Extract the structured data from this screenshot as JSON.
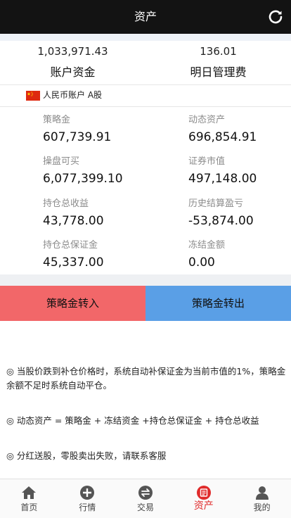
{
  "header": {
    "title": "资产",
    "refresh_icon": "refresh-icon"
  },
  "summary": {
    "account_funds_value": "1,033,971.43",
    "account_funds_label": "账户资金",
    "next_day_fee_value": "136.01",
    "next_day_fee_label": "明日管理费"
  },
  "account": {
    "label": "人民币账户 A股",
    "flag_icon": "china-flag-icon"
  },
  "stats": {
    "strategy_fund": {
      "label": "策略金",
      "value": "607,739.91"
    },
    "dynamic_assets": {
      "label": "动态资产",
      "value": "696,854.91"
    },
    "tradable": {
      "label": "操盘可买",
      "value": "6,077,399.10"
    },
    "market_value": {
      "label": "证券市值",
      "value": "497,148.00"
    },
    "position_profit": {
      "label": "持仓总收益",
      "value": "43,778.00"
    },
    "historical_pl": {
      "label": "历史结算盈亏",
      "value": "-53,874.00"
    },
    "position_margin": {
      "label": "持仓总保证金",
      "value": "45,337.00"
    },
    "frozen_amount": {
      "label": "冻结金额",
      "value": "0.00"
    }
  },
  "actions": {
    "transfer_in": "策略金转入",
    "transfer_out": "策略金转出"
  },
  "notes": [
    "◎ 当股价跌到补仓价格时，系统自动补保证金为当前市值的1%，策略金余额不足时系统自动平仓。",
    "◎ 动态资产 = 策略金 + 冻结资金 +持仓总保证金 + 持仓总收益",
    "◎ 分红送股，零股卖出失败，请联系客服"
  ],
  "tabs": [
    {
      "label": "首页",
      "icon": "home-icon"
    },
    {
      "label": "行情",
      "icon": "plus-circle-icon"
    },
    {
      "label": "交易",
      "icon": "exchange-icon"
    },
    {
      "label": "资产",
      "icon": "assets-icon"
    },
    {
      "label": "我的",
      "icon": "user-icon"
    }
  ],
  "colors": {
    "header_bg": "#131313",
    "transfer_in_bg": "#f26769",
    "transfer_out_bg": "#5a9fe6",
    "active_tab": "#e02b2b"
  }
}
